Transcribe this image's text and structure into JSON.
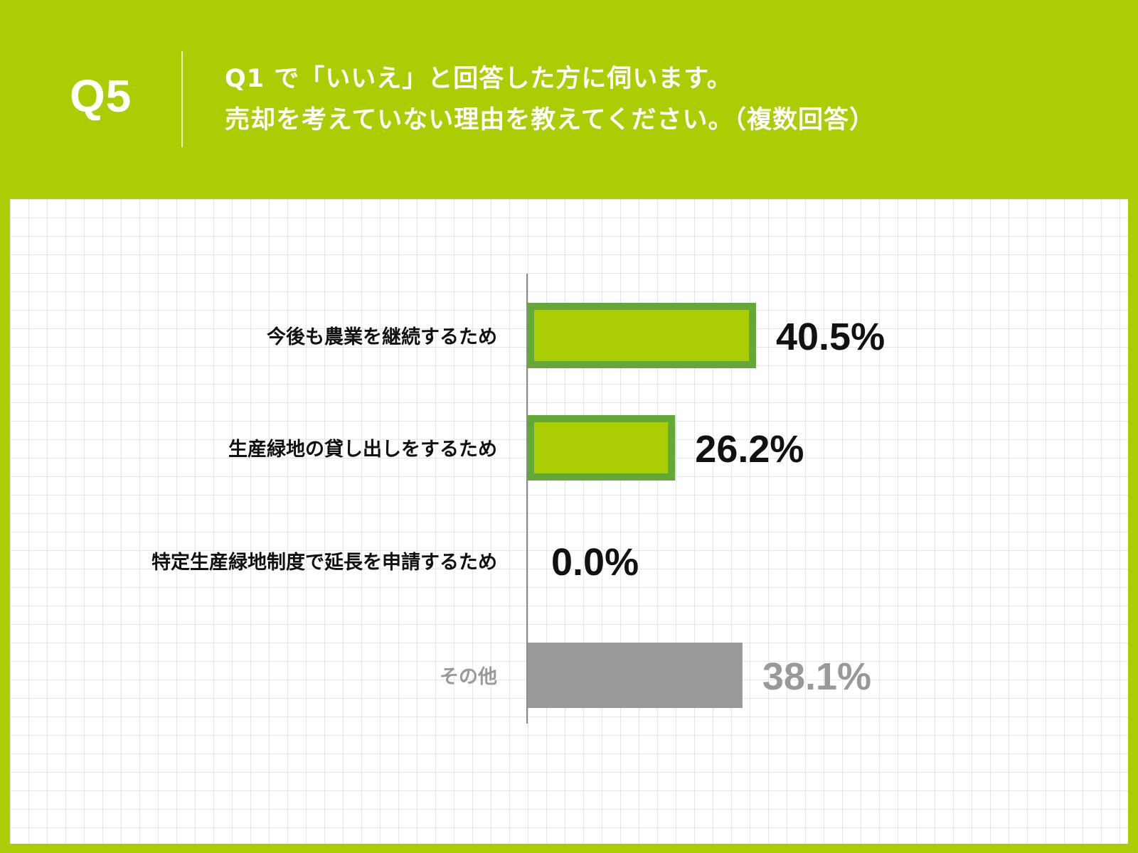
{
  "header": {
    "question_number": "Q5",
    "question_line1": "Q1 で「いいえ」と回答した方に伺います。",
    "question_line2": "売却を考えていない理由を教えてください。（複数回答）"
  },
  "colors": {
    "background": "#abcd03",
    "bar_fill": "#abcd03",
    "bar_border": "#64a83a",
    "other_bar": "#999999",
    "other_text": "#999999",
    "text": "#111111"
  },
  "chart_data": {
    "type": "bar",
    "orientation": "horizontal",
    "categories": [
      "今後も農業を継続するため",
      "生産緑地の貸し出しをするため",
      "特定生産緑地制度で延長を申請するため",
      "その他"
    ],
    "values": [
      40.5,
      26.2,
      0.0,
      38.1
    ],
    "value_labels": [
      "40.5%",
      "26.2%",
      "0.0%",
      "38.1%"
    ],
    "highlight": [
      true,
      true,
      true,
      false
    ],
    "unit": "%",
    "xlim": [
      0,
      100
    ],
    "grid": true
  }
}
